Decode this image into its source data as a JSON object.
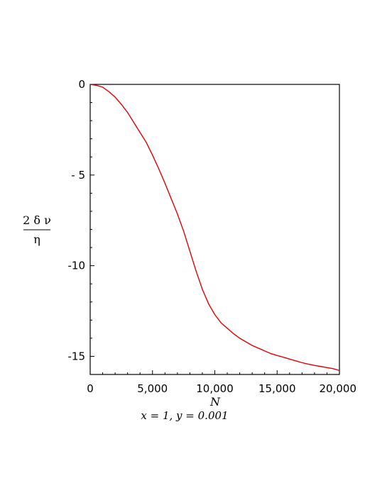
{
  "chart_data": {
    "type": "line",
    "xlabel": "N",
    "ylabel_numerator": "2 δ ν",
    "ylabel_denominator": "η",
    "caption": "x = 1, y = 0.001",
    "xlim": [
      0,
      20000
    ],
    "ylim": [
      -16,
      0
    ],
    "x_ticks": [
      {
        "value": 0,
        "label": "0"
      },
      {
        "value": 5000,
        "label": "5,000"
      },
      {
        "value": 10000,
        "label": "10,000"
      },
      {
        "value": 15000,
        "label": "15,000"
      },
      {
        "value": 20000,
        "label": "20,000"
      }
    ],
    "y_ticks": [
      {
        "value": 0,
        "label": "0"
      },
      {
        "value": -5,
        "label": "- 5"
      },
      {
        "value": -10,
        "label": "-10"
      },
      {
        "value": -15,
        "label": "-15"
      }
    ],
    "grid": false,
    "legend": "none",
    "series": [
      {
        "color": "#e00000",
        "x": [
          0,
          500,
          1000,
          1500,
          2000,
          2500,
          3000,
          3500,
          4000,
          4500,
          5000,
          5500,
          6000,
          6500,
          7000,
          7500,
          8000,
          8500,
          9000,
          9500,
          10000,
          10500,
          11000,
          11500,
          12000,
          12500,
          13000,
          13500,
          14000,
          14500,
          15000,
          15500,
          16000,
          16500,
          17000,
          17500,
          18000,
          18500,
          19000,
          19500,
          20000
        ],
        "y": [
          0,
          -0.05,
          -0.15,
          -0.4,
          -0.7,
          -1.1,
          -1.55,
          -2.1,
          -2.65,
          -3.2,
          -3.9,
          -4.65,
          -5.45,
          -6.3,
          -7.15,
          -8.1,
          -9.2,
          -10.3,
          -11.3,
          -12.1,
          -12.7,
          -13.15,
          -13.45,
          -13.75,
          -14.0,
          -14.2,
          -14.4,
          -14.55,
          -14.7,
          -14.85,
          -14.95,
          -15.05,
          -15.15,
          -15.25,
          -15.35,
          -15.43,
          -15.5,
          -15.56,
          -15.62,
          -15.68,
          -15.78
        ]
      }
    ]
  }
}
